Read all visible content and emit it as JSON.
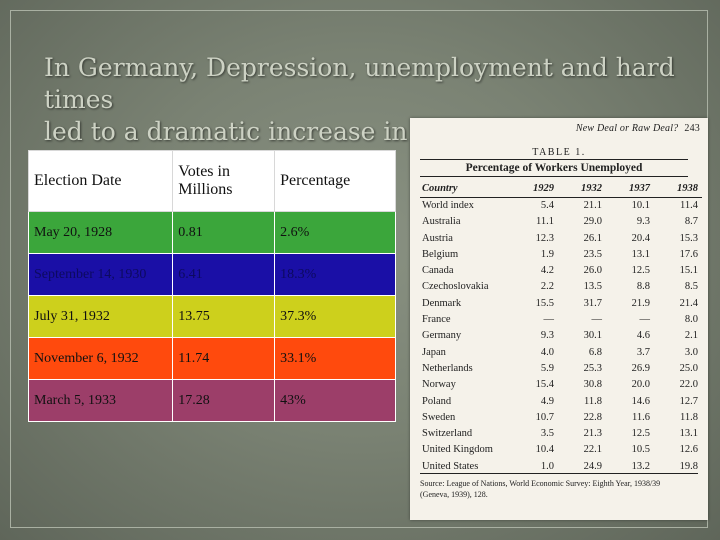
{
  "slide": {
    "title_line1": "In Germany, Depression, unemployment and hard times",
    "title_line2": "led to a dramatic increase in votes for the Nazi Party."
  },
  "votes_table": {
    "headers": [
      "Election Date",
      "Votes in Millions",
      "Percentage"
    ],
    "rows": [
      {
        "date": "May 20, 1928",
        "votes": "0.81",
        "percent": "2.6%"
      },
      {
        "date": "September 14, 1930",
        "votes": "6.41",
        "percent": "18.3%"
      },
      {
        "date": "July 31, 1932",
        "votes": "13.75",
        "percent": "37.3%"
      },
      {
        "date": "November 6, 1932",
        "votes": "11.74",
        "percent": "33.1%"
      },
      {
        "date": "March 5, 1933",
        "votes": "17.28",
        "percent": "43%"
      }
    ],
    "row_colors": [
      "#3ba63b",
      "#1a0fa6",
      "#cdd01c",
      "#ff4a0d",
      "#9c3e69"
    ]
  },
  "document": {
    "running_head": "New Deal or Raw Deal?",
    "page_number": "243",
    "table_number": "TABLE 1.",
    "table_title": "Percentage of Workers Unemployed",
    "headers": [
      "Country",
      "1929",
      "1932",
      "1937",
      "1938"
    ],
    "rows": [
      [
        "World index",
        "5.4",
        "21.1",
        "10.1",
        "11.4"
      ],
      [
        "Australia",
        "11.1",
        "29.0",
        "9.3",
        "8.7"
      ],
      [
        "Austria",
        "12.3",
        "26.1",
        "20.4",
        "15.3"
      ],
      [
        "Belgium",
        "1.9",
        "23.5",
        "13.1",
        "17.6"
      ],
      [
        "Canada",
        "4.2",
        "26.0",
        "12.5",
        "15.1"
      ],
      [
        "Czechoslovakia",
        "2.2",
        "13.5",
        "8.8",
        "8.5"
      ],
      [
        "Denmark",
        "15.5",
        "31.7",
        "21.9",
        "21.4"
      ],
      [
        "France",
        "—",
        "—",
        "—",
        "8.0"
      ],
      [
        "Germany",
        "9.3",
        "30.1",
        "4.6",
        "2.1"
      ],
      [
        "Japan",
        "4.0",
        "6.8",
        "3.7",
        "3.0"
      ],
      [
        "Netherlands",
        "5.9",
        "25.3",
        "26.9",
        "25.0"
      ],
      [
        "Norway",
        "15.4",
        "30.8",
        "20.0",
        "22.0"
      ],
      [
        "Poland",
        "4.9",
        "11.8",
        "14.6",
        "12.7"
      ],
      [
        "Sweden",
        "10.7",
        "22.8",
        "11.6",
        "11.8"
      ],
      [
        "Switzerland",
        "3.5",
        "21.3",
        "12.5",
        "13.1"
      ],
      [
        "United Kingdom",
        "10.4",
        "22.1",
        "10.5",
        "12.6"
      ],
      [
        "United States",
        "1.0",
        "24.9",
        "13.2",
        "19.8"
      ]
    ],
    "source_line1": "Source: League of Nations, World Economic Survey: Eighth Year, 1938/39",
    "source_line2": "(Geneva, 1939), 128."
  }
}
